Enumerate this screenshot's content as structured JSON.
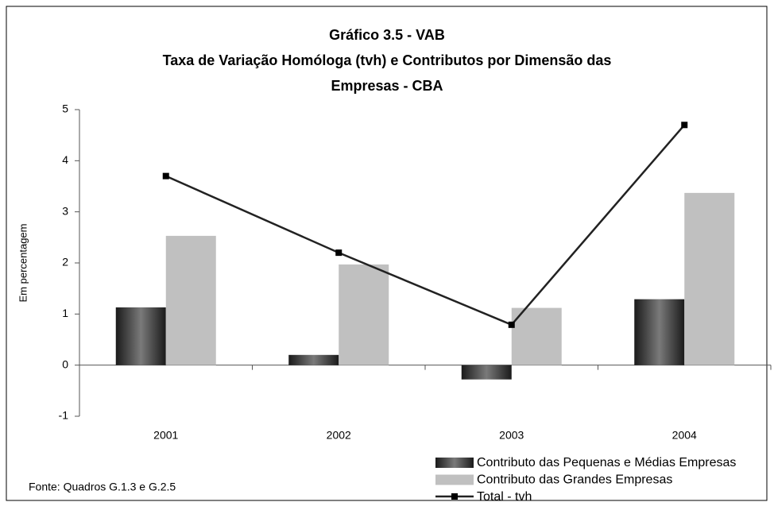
{
  "chart_data": {
    "type": "bar",
    "title": "Gráfico 3.5 - VAB",
    "subtitle": "Taxa de Variação Homóloga (tvh) e Contributos por Dimensão das Empresas - CBA",
    "y_label": "Em percentagem",
    "source": "Fonte: Quadros G.1.3 e G.2.5",
    "categories": [
      "2001",
      "2002",
      "2003",
      "2004"
    ],
    "series": [
      {
        "name": "Contributo das Pequenas e Médias Empresas",
        "type": "bar",
        "color": "#404040",
        "values": [
          1.13,
          0.2,
          -0.28,
          1.29
        ]
      },
      {
        "name": "Contributo das Grandes Empresas",
        "type": "bar",
        "color": "#c0c0c0",
        "values": [
          2.53,
          1.97,
          1.12,
          3.37
        ]
      },
      {
        "name": "Total - tvh",
        "type": "line",
        "color": "#222222",
        "values": [
          3.7,
          2.2,
          0.79,
          4.7
        ]
      }
    ],
    "ylim": [
      -1,
      5
    ],
    "yticks": [
      -1,
      0,
      1,
      2,
      3,
      4,
      5
    ],
    "grid": false
  }
}
